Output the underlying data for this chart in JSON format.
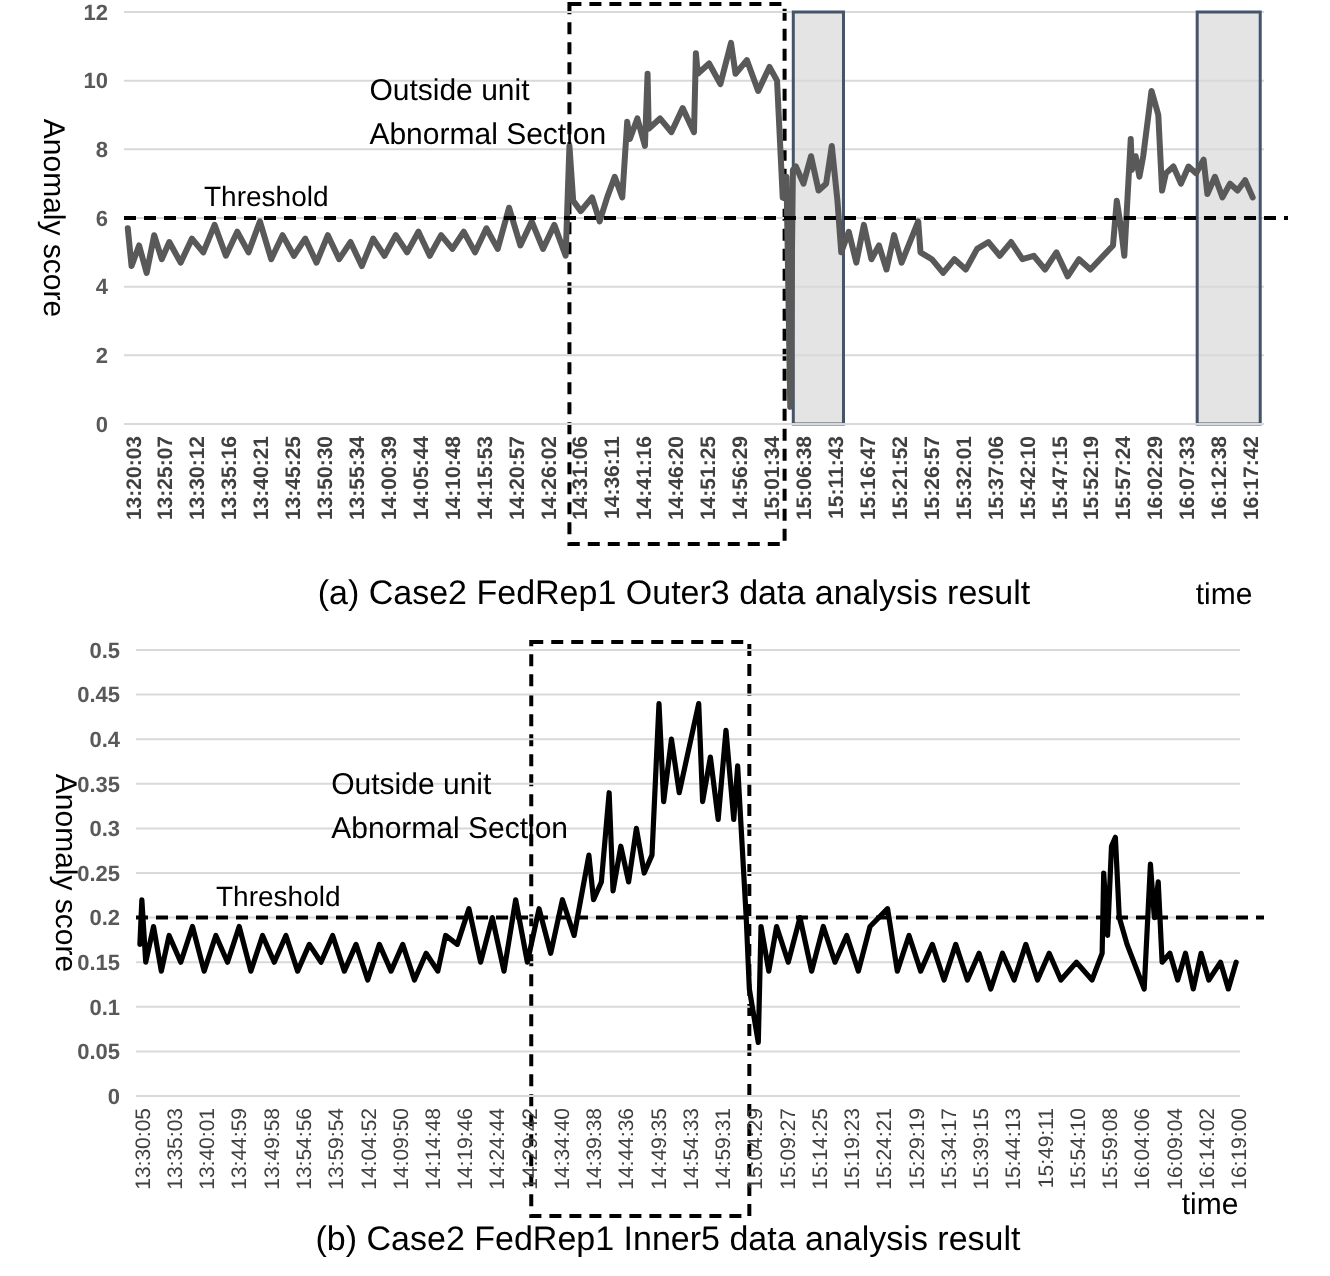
{
  "chart_data": [
    {
      "type": "line",
      "title": "(a) Case2 FedRep1 Outer3 data analysis result",
      "xlabel": "time",
      "ylabel": "Anomaly score",
      "grid": "y",
      "marker": "none",
      "xlim": [
        13.31,
        16.33
      ],
      "ylim": [
        0,
        12
      ],
      "yticks": [
        0,
        2,
        4,
        6,
        8,
        10,
        12
      ],
      "xticks": [
        {
          "value": 13.3342,
          "label": "13:20:03"
        },
        {
          "value": 13.4186,
          "label": "13:25:07"
        },
        {
          "value": 13.5033,
          "label": "13:30:12"
        },
        {
          "value": 13.5878,
          "label": "13:35:16"
        },
        {
          "value": 13.6725,
          "label": "13:40:21"
        },
        {
          "value": 13.7569,
          "label": "13:45:25"
        },
        {
          "value": 13.8417,
          "label": "13:50:30"
        },
        {
          "value": 13.9261,
          "label": "13:55:34"
        },
        {
          "value": 14.0108,
          "label": "14:00:39"
        },
        {
          "value": 14.0956,
          "label": "14:05:44"
        },
        {
          "value": 14.18,
          "label": "14:10:48"
        },
        {
          "value": 14.2647,
          "label": "14:15:53"
        },
        {
          "value": 14.3492,
          "label": "14:20:57"
        },
        {
          "value": 14.4339,
          "label": "14:26:02"
        },
        {
          "value": 14.5183,
          "label": "14:31:06"
        },
        {
          "value": 14.6031,
          "label": "14:36:11"
        },
        {
          "value": 14.6878,
          "label": "14:41:16"
        },
        {
          "value": 14.7722,
          "label": "14:46:20"
        },
        {
          "value": 14.8569,
          "label": "14:51:25"
        },
        {
          "value": 14.9414,
          "label": "14:56:29"
        },
        {
          "value": 15.0261,
          "label": "15:01:34"
        },
        {
          "value": 15.1106,
          "label": "15:06:38"
        },
        {
          "value": 15.1953,
          "label": "15:11:43"
        },
        {
          "value": 15.2797,
          "label": "15:16:47"
        },
        {
          "value": 15.3644,
          "label": "15:21:52"
        },
        {
          "value": 15.4492,
          "label": "15:26:57"
        },
        {
          "value": 15.5336,
          "label": "15:32:01"
        },
        {
          "value": 15.6183,
          "label": "15:37:06"
        },
        {
          "value": 15.7028,
          "label": "15:42:10"
        },
        {
          "value": 15.7875,
          "label": "15:47:15"
        },
        {
          "value": 15.8719,
          "label": "15:52:19"
        },
        {
          "value": 15.9567,
          "label": "15:57:24"
        },
        {
          "value": 16.0414,
          "label": "16:02:29"
        },
        {
          "value": 16.1258,
          "label": "16:07:33"
        },
        {
          "value": 16.2106,
          "label": "16:12:38"
        },
        {
          "value": 16.295,
          "label": "16:17:42"
        }
      ],
      "ref_lines": [
        {
          "axis": "y",
          "value": 6,
          "label": "Threshold",
          "line_style": "dashed",
          "color": "#000000"
        }
      ],
      "bands": [
        {
          "axis": "x",
          "from": 14.49,
          "to": 15.06,
          "label": "Outside unit\nAbnormal Section",
          "color": "#ffffff"
        },
        {
          "axis": "x",
          "from": 15.083,
          "to": 15.216,
          "color": "#d9d9d9"
        },
        {
          "axis": "x",
          "from": 16.153,
          "to": 16.32,
          "color": "#d9d9d9"
        }
      ],
      "series": [
        {
          "color": "#595959",
          "x": [
            13.32,
            13.33,
            13.35,
            13.37,
            13.39,
            13.41,
            13.43,
            13.46,
            13.49,
            13.52,
            13.55,
            13.58,
            13.61,
            13.64,
            13.67,
            13.7,
            13.73,
            13.76,
            13.79,
            13.82,
            13.85,
            13.88,
            13.91,
            13.94,
            13.97,
            14.0,
            14.03,
            14.06,
            14.09,
            14.12,
            14.15,
            14.18,
            14.21,
            14.24,
            14.27,
            14.3,
            14.33,
            14.36,
            14.39,
            14.42,
            14.45,
            14.48,
            14.49,
            14.5,
            14.52,
            14.55,
            14.57,
            14.59,
            14.61,
            14.63,
            14.643,
            14.65,
            14.67,
            14.69,
            14.697,
            14.7,
            14.73,
            14.76,
            14.79,
            14.82,
            14.825,
            14.83,
            14.86,
            14.89,
            14.918,
            14.93,
            14.96,
            14.99,
            15.02,
            15.04,
            15.055,
            15.065,
            15.075,
            15.082,
            15.09,
            15.11,
            15.13,
            15.15,
            15.17,
            15.185,
            15.2,
            15.21,
            15.23,
            15.25,
            15.27,
            15.29,
            15.31,
            15.33,
            15.35,
            15.37,
            15.414,
            15.42,
            15.45,
            15.48,
            15.51,
            15.54,
            15.57,
            15.6,
            15.63,
            15.66,
            15.69,
            15.72,
            15.75,
            15.78,
            15.81,
            15.84,
            15.87,
            15.93,
            15.94,
            15.95,
            15.96,
            15.977,
            15.98,
            15.99,
            16.0,
            16.01,
            16.032,
            16.04,
            16.05,
            16.06,
            16.07,
            16.09,
            16.11,
            16.13,
            16.15,
            16.17,
            16.18,
            16.2,
            16.22,
            16.24,
            16.26,
            16.28,
            16.3
          ],
          "values": [
            5.7,
            4.6,
            5.2,
            4.4,
            5.5,
            4.8,
            5.3,
            4.7,
            5.4,
            5.0,
            5.8,
            4.9,
            5.6,
            5.0,
            5.9,
            4.8,
            5.5,
            4.9,
            5.4,
            4.7,
            5.5,
            4.8,
            5.3,
            4.6,
            5.4,
            4.9,
            5.5,
            5.0,
            5.6,
            4.9,
            5.5,
            5.1,
            5.6,
            5.0,
            5.7,
            5.1,
            6.3,
            5.2,
            5.9,
            5.1,
            5.8,
            4.9,
            8.1,
            6.5,
            6.2,
            6.6,
            5.9,
            6.6,
            7.2,
            6.6,
            8.8,
            8.3,
            8.9,
            8.1,
            10.2,
            8.6,
            8.9,
            8.5,
            9.2,
            8.5,
            10.8,
            10.2,
            10.5,
            9.9,
            11.1,
            10.2,
            10.6,
            9.7,
            10.4,
            10.0,
            6.6,
            7.2,
            0.5,
            7.4,
            7.5,
            7.0,
            7.8,
            6.8,
            7.0,
            8.1,
            6.5,
            5.0,
            5.6,
            4.7,
            5.8,
            4.8,
            5.2,
            4.5,
            5.5,
            4.7,
            5.9,
            5.0,
            4.8,
            4.4,
            4.8,
            4.5,
            5.1,
            5.3,
            4.9,
            5.3,
            4.8,
            4.9,
            4.5,
            5.0,
            4.3,
            4.8,
            4.5,
            5.2,
            6.5,
            5.8,
            4.9,
            8.3,
            7.4,
            7.8,
            7.2,
            7.8,
            9.7,
            9.4,
            9.0,
            6.8,
            7.3,
            7.5,
            7.0,
            7.5,
            7.3,
            7.7,
            6.7,
            7.2,
            6.6,
            7.0,
            6.8,
            7.1,
            6.6
          ]
        }
      ]
    },
    {
      "type": "line",
      "title": "(b) Case2 FedRep1 Inner5 data analysis result",
      "xlabel": "time",
      "ylabel": "Anomaly score",
      "grid": "y",
      "marker": "none",
      "xlim": [
        13.485,
        16.32
      ],
      "ylim": [
        0,
        0.5
      ],
      "yticks": [
        0,
        0.05,
        0.1,
        0.15,
        0.2,
        0.25,
        0.3,
        0.35,
        0.4,
        0.45,
        0.5
      ],
      "xticks": [
        {
          "value": 13.5014,
          "label": "13:30:05"
        },
        {
          "value": 13.5842,
          "label": "13:35:03"
        },
        {
          "value": 13.6669,
          "label": "13:40:01"
        },
        {
          "value": 13.7497,
          "label": "13:44:59"
        },
        {
          "value": 13.8328,
          "label": "13:49:58"
        },
        {
          "value": 13.9156,
          "label": "13:54:56"
        },
        {
          "value": 13.9983,
          "label": "13:59:54"
        },
        {
          "value": 14.0811,
          "label": "14:04:52"
        },
        {
          "value": 14.1639,
          "label": "14:09:50"
        },
        {
          "value": 14.2467,
          "label": "14:14:48"
        },
        {
          "value": 14.3294,
          "label": "14:19:46"
        },
        {
          "value": 14.4122,
          "label": "14:24:44"
        },
        {
          "value": 14.495,
          "label": "14:29:42"
        },
        {
          "value": 14.5778,
          "label": "14:34:40"
        },
        {
          "value": 14.6606,
          "label": "14:39:38"
        },
        {
          "value": 14.7433,
          "label": "14:44:36"
        },
        {
          "value": 14.8264,
          "label": "14:49:35"
        },
        {
          "value": 14.9092,
          "label": "14:54:33"
        },
        {
          "value": 14.9919,
          "label": "14:59:31"
        },
        {
          "value": 15.0747,
          "label": "15:04:29"
        },
        {
          "value": 15.1575,
          "label": "15:09:27"
        },
        {
          "value": 15.2403,
          "label": "15:14:25"
        },
        {
          "value": 15.3231,
          "label": "15:19:23"
        },
        {
          "value": 15.4058,
          "label": "15:24:21"
        },
        {
          "value": 15.4886,
          "label": "15:29:19"
        },
        {
          "value": 15.5714,
          "label": "15:34:17"
        },
        {
          "value": 15.6542,
          "label": "15:39:15"
        },
        {
          "value": 15.7369,
          "label": "15:44:13"
        },
        {
          "value": 15.8197,
          "label": "15:49:11"
        },
        {
          "value": 15.9028,
          "label": "15:54:10"
        },
        {
          "value": 15.9856,
          "label": "15:59:08"
        },
        {
          "value": 16.0683,
          "label": "16:04:06"
        },
        {
          "value": 16.1511,
          "label": "16:09:04"
        },
        {
          "value": 16.2339,
          "label": "16:14:02"
        },
        {
          "value": 16.3167,
          "label": "16:19:00"
        }
      ],
      "ref_lines": [
        {
          "axis": "y",
          "value": 0.2,
          "label": "Threshold",
          "line_style": "dashed",
          "color": "#000000"
        }
      ],
      "bands": [
        {
          "axis": "x",
          "from": 14.5,
          "to": 15.06,
          "label": "Outside unit\nAbnormal Section",
          "color": "#ffffff"
        }
      ],
      "series": [
        {
          "color": "#000000",
          "x": [
            13.495,
            13.5,
            13.51,
            13.53,
            13.55,
            13.57,
            13.6,
            13.63,
            13.66,
            13.69,
            13.72,
            13.75,
            13.78,
            13.81,
            13.84,
            13.87,
            13.9,
            13.93,
            13.96,
            13.99,
            14.02,
            14.05,
            14.08,
            14.11,
            14.14,
            14.17,
            14.2,
            14.23,
            14.26,
            14.28,
            14.31,
            14.34,
            14.37,
            14.4,
            14.43,
            14.46,
            14.49,
            14.52,
            14.55,
            14.58,
            14.61,
            14.648,
            14.66,
            14.68,
            14.7,
            14.71,
            14.73,
            14.75,
            14.77,
            14.79,
            14.81,
            14.828,
            14.84,
            14.86,
            14.88,
            14.93,
            14.94,
            14.96,
            14.98,
            15.0,
            15.02,
            15.03,
            15.052,
            15.06,
            15.083,
            15.09,
            15.11,
            15.13,
            15.16,
            15.19,
            15.22,
            15.25,
            15.28,
            15.31,
            15.34,
            15.37,
            15.415,
            15.44,
            15.47,
            15.5,
            15.53,
            15.56,
            15.59,
            15.62,
            15.65,
            15.68,
            15.71,
            15.74,
            15.77,
            15.8,
            15.83,
            15.86,
            15.9,
            15.94,
            15.966,
            15.97,
            15.98,
            15.99,
            16.0,
            16.01,
            16.03,
            16.074,
            16.09,
            16.1,
            16.11,
            16.12,
            16.14,
            16.16,
            16.18,
            16.2,
            16.22,
            16.24,
            16.27,
            16.29,
            16.31
          ],
          "values": [
            0.17,
            0.22,
            0.15,
            0.19,
            0.14,
            0.18,
            0.15,
            0.19,
            0.14,
            0.18,
            0.15,
            0.19,
            0.14,
            0.18,
            0.15,
            0.18,
            0.14,
            0.17,
            0.15,
            0.18,
            0.14,
            0.17,
            0.13,
            0.17,
            0.14,
            0.17,
            0.13,
            0.16,
            0.14,
            0.18,
            0.17,
            0.21,
            0.15,
            0.2,
            0.14,
            0.22,
            0.15,
            0.21,
            0.16,
            0.22,
            0.18,
            0.27,
            0.22,
            0.24,
            0.34,
            0.23,
            0.28,
            0.24,
            0.3,
            0.25,
            0.27,
            0.44,
            0.33,
            0.4,
            0.34,
            0.44,
            0.33,
            0.38,
            0.31,
            0.41,
            0.31,
            0.37,
            0.2,
            0.12,
            0.06,
            0.19,
            0.14,
            0.19,
            0.15,
            0.2,
            0.14,
            0.19,
            0.15,
            0.18,
            0.14,
            0.19,
            0.21,
            0.14,
            0.18,
            0.14,
            0.17,
            0.13,
            0.17,
            0.13,
            0.16,
            0.12,
            0.16,
            0.13,
            0.17,
            0.13,
            0.16,
            0.13,
            0.15,
            0.13,
            0.16,
            0.25,
            0.18,
            0.28,
            0.29,
            0.2,
            0.17,
            0.12,
            0.26,
            0.2,
            0.24,
            0.15,
            0.16,
            0.13,
            0.16,
            0.12,
            0.16,
            0.13,
            0.15,
            0.12,
            0.15
          ]
        }
      ]
    }
  ]
}
